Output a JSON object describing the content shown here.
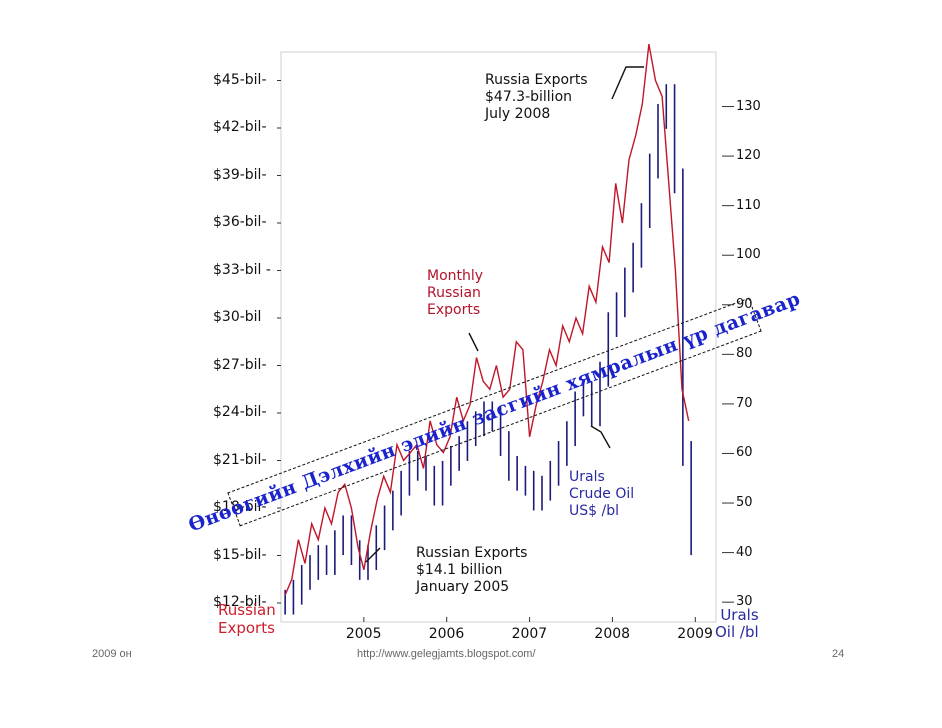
{
  "chart_data": {
    "type": "line",
    "x_categories": [
      "2005",
      "2006",
      "2007",
      "2008",
      "2009"
    ],
    "y_left_ticks": [
      "$45-bil-",
      "$42-bil-",
      "$39-bil-",
      "$36-bil-",
      "$33-bil -",
      "$30-bil",
      "$27-bil-",
      "$24-bil-",
      "$21-bil-",
      "$18-bil-",
      "$15-bil-",
      "$12-bil-"
    ],
    "y_left_tick_values": [
      45,
      42,
      39,
      36,
      33,
      30,
      27,
      24,
      21,
      18,
      15,
      12
    ],
    "y_right_ticks": [
      "130",
      "120",
      "110",
      "100",
      "90",
      "80",
      "70",
      "60",
      "50",
      "40",
      "30"
    ],
    "y_right_tick_values": [
      130,
      120,
      110,
      100,
      90,
      80,
      70,
      60,
      50,
      40,
      30
    ],
    "ylim_left": [
      10.8,
      46.8
    ],
    "ylim_right": [
      26,
      141
    ],
    "left_axis_title": "Russian\nExports",
    "right_axis_title": "Urals\nOil /bl",
    "series": [
      {
        "name": "Monthly Russian Exports",
        "color": "#c0162a",
        "x": [
          2004.05,
          2004.13,
          2004.21,
          2004.29,
          2004.37,
          2004.45,
          2004.53,
          2004.61,
          2004.69,
          2004.77,
          2004.85,
          2004.93,
          2005.0,
          2005.08,
          2005.16,
          2005.24,
          2005.32,
          2005.4,
          2005.48,
          2005.56,
          2005.64,
          2005.72,
          2005.8,
          2005.88,
          2005.96,
          2006.04,
          2006.12,
          2006.2,
          2006.28,
          2006.36,
          2006.44,
          2006.52,
          2006.6,
          2006.68,
          2006.76,
          2006.84,
          2006.92,
          2007.0,
          2007.08,
          2007.16,
          2007.24,
          2007.32,
          2007.4,
          2007.48,
          2007.56,
          2007.64,
          2007.72,
          2007.8,
          2007.88,
          2007.96,
          2008.04,
          2008.12,
          2008.2,
          2008.28,
          2008.36,
          2008.44,
          2008.52,
          2008.6,
          2008.68,
          2008.76,
          2008.84,
          2008.92
        ],
        "values": [
          12.5,
          13.5,
          16.0,
          14.5,
          17.0,
          16.0,
          18.0,
          17.0,
          19.0,
          19.5,
          18.0,
          15.5,
          14.1,
          16.5,
          18.5,
          20.0,
          19.0,
          22.0,
          21.0,
          21.5,
          22.0,
          20.5,
          23.5,
          22.0,
          21.5,
          22.5,
          25.0,
          23.5,
          24.5,
          27.5,
          26.0,
          25.5,
          27.0,
          25.0,
          25.5,
          28.5,
          28.0,
          22.5,
          24.5,
          26.0,
          28.0,
          27.0,
          29.5,
          28.5,
          30.0,
          29.0,
          32.0,
          31.0,
          34.5,
          33.5,
          38.5,
          36.0,
          40.0,
          41.5,
          43.5,
          47.3,
          45.0,
          44.0,
          38.5,
          33.0,
          25.5,
          23.5
        ]
      },
      {
        "name": "Urals Crude Oil US$ /bl",
        "color": "#1a1a7a",
        "x": [
          2004.05,
          2004.15,
          2004.25,
          2004.35,
          2004.45,
          2004.55,
          2004.65,
          2004.75,
          2004.85,
          2004.95,
          2005.05,
          2005.15,
          2005.25,
          2005.35,
          2005.45,
          2005.55,
          2005.65,
          2005.75,
          2005.85,
          2005.95,
          2006.05,
          2006.15,
          2006.25,
          2006.35,
          2006.45,
          2006.55,
          2006.65,
          2006.75,
          2006.85,
          2006.95,
          2007.05,
          2007.15,
          2007.25,
          2007.35,
          2007.45,
          2007.55,
          2007.65,
          2007.75,
          2007.85,
          2007.95,
          2008.05,
          2008.15,
          2008.25,
          2008.35,
          2008.45,
          2008.55,
          2008.65,
          2008.75,
          2008.85,
          2008.95
        ],
        "values": [
          30,
          32,
          35,
          37,
          39,
          38,
          42,
          45,
          40,
          37,
          39,
          43,
          47,
          50,
          54,
          58,
          57,
          55,
          52,
          56,
          59,
          61,
          64,
          66,
          68,
          67,
          62,
          57,
          55,
          54,
          51,
          53,
          56,
          60,
          64,
          70,
          72,
          68,
          76,
          86,
          90,
          95,
          100,
          108,
          118,
          128,
          132,
          115,
          60,
          42
        ]
      }
    ],
    "annotations": {
      "peak_label": "Russia Exports\n$47.3-billion\nJuly 2008",
      "monthly_label": "Monthly\nRussian\nExports",
      "urals_label": "Urals\nCrude Oil\nUS$ /bl",
      "jan2005_label": "Russian Exports\n$14.1 billion\nJanuary 2005"
    },
    "band_text": "Өнөөгийн Дэлхийн эдийн засгийн хямралын үр дагавар"
  },
  "footer": {
    "left": "2009 он",
    "center": "http://www.gelegjamts.blogspot.com/",
    "right": "24"
  }
}
